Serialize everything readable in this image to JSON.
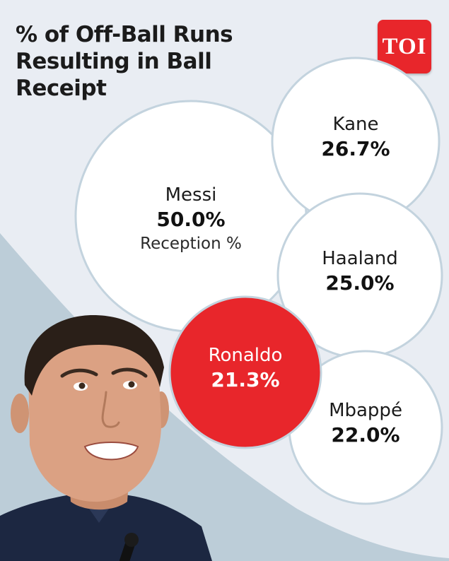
{
  "title": "% of Off-Ball Runs Resulting in Ball Receipt",
  "logo": {
    "text": "TOI",
    "color": "#e8262b"
  },
  "colors": {
    "bubble": "#ffffff",
    "bubble_stroke": "#c3d3de",
    "highlight": "#e8262b",
    "background": "#e9edf3",
    "wave": "#bccdd8"
  },
  "chart_data": {
    "type": "bubble",
    "title": "% of Off-Ball Runs Resulting in Ball Receipt",
    "series_label": "Reception %",
    "highlight": "Ronaldo",
    "points": [
      {
        "name": "Messi",
        "value": 50.0,
        "label": "50.0%",
        "sublabel": "Reception %"
      },
      {
        "name": "Kane",
        "value": 26.7,
        "label": "26.7%"
      },
      {
        "name": "Haaland",
        "value": 25.0,
        "label": "25.0%"
      },
      {
        "name": "Ronaldo",
        "value": 21.3,
        "label": "21.3%"
      },
      {
        "name": "Mbappé",
        "value": 22.0,
        "label": "22.0%"
      }
    ]
  }
}
